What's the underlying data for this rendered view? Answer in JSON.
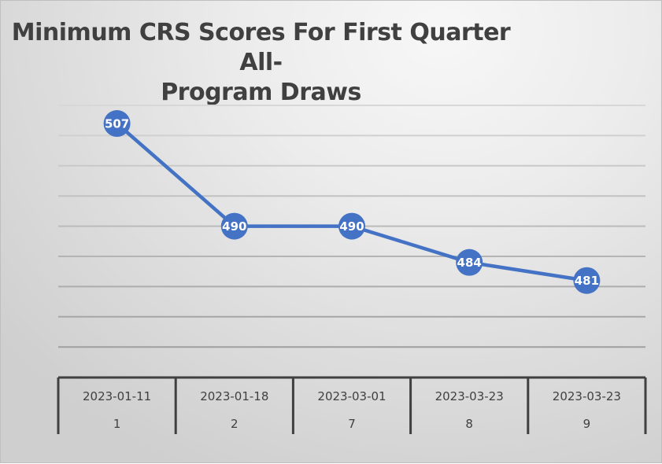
{
  "chart_data": {
    "type": "line",
    "title": "Minimum CRS Scores For First Quarter All-Program Draws",
    "title_lines": [
      "Minimum CRS Scores For First Quarter All-",
      "Program Draws"
    ],
    "xlabel": "",
    "ylabel": "",
    "categories": [
      {
        "date": "2023-01-11",
        "draw": "1"
      },
      {
        "date": "2023-01-18",
        "draw": "2"
      },
      {
        "date": "2023-03-01",
        "draw": "7"
      },
      {
        "date": "2023-03-23",
        "draw": "8"
      },
      {
        "date": "2023-03-23",
        "draw": "9"
      }
    ],
    "series": [
      {
        "name": "Minimum CRS Score",
        "values": [
          507,
          490,
          490,
          484,
          481
        ],
        "color": "#4472c4"
      }
    ],
    "ylim": [
      465,
      510
    ],
    "gridlines": [
      510,
      505,
      500,
      495,
      490,
      485,
      480,
      475,
      470
    ],
    "grid": true,
    "y_axis_labels_visible": false,
    "legend": "none",
    "data_labels": true
  },
  "colors": {
    "line": "#4472c4",
    "marker_text": "#ffffff",
    "title": "#404040",
    "axis_table": "#404040",
    "gridline": "#bfbfbf"
  }
}
